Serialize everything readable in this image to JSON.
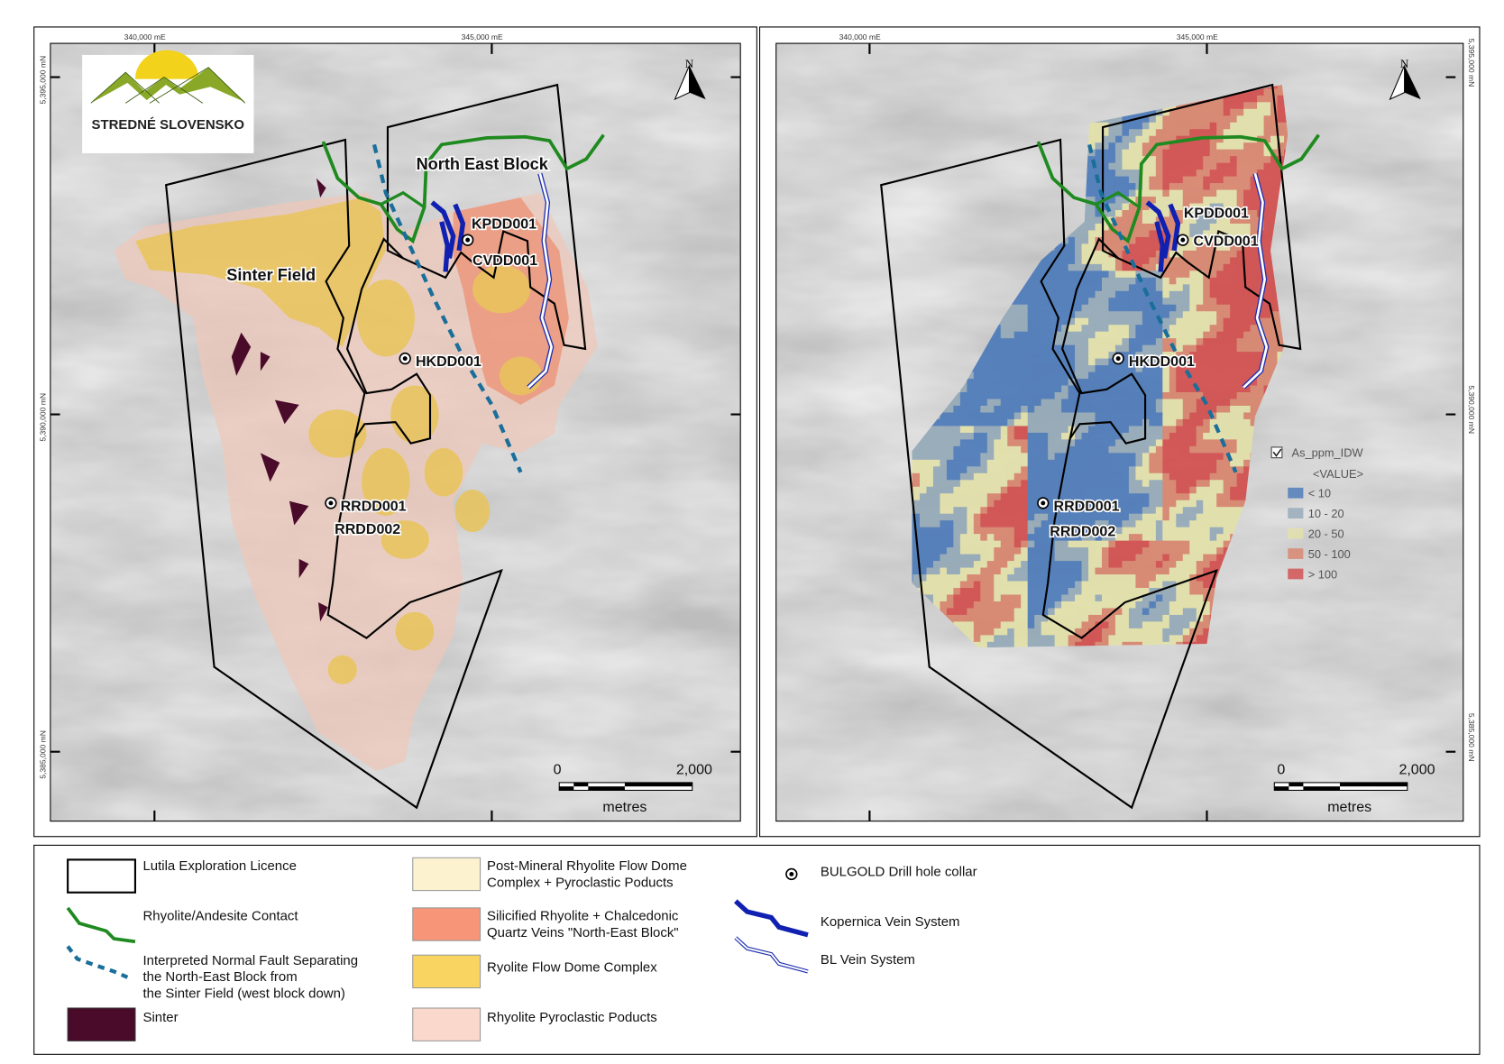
{
  "logo": {
    "text": "STREDNÉ SLOVENSKO"
  },
  "grid": {
    "easting": [
      "340,000 mE",
      "345,000 mE"
    ],
    "northing": [
      "5,395,000 mN",
      "5,390,000 mN",
      "5,385,000 mN"
    ]
  },
  "north_arrow": "N",
  "map_left": {
    "labels": {
      "north_east_block": "North East Block",
      "sinter_field": "Sinter Field"
    },
    "drill_holes": [
      "KPDD001",
      "CVDD001",
      "HKDD001",
      "RRDD001",
      "RRDD002"
    ]
  },
  "map_right": {
    "drill_holes": [
      "KPDD001",
      "CVDD001",
      "HKDD001",
      "RRDD001",
      "RRDD002"
    ],
    "raster_legend": {
      "layer": "As_ppm_IDW",
      "field": "<VALUE>",
      "checked": true,
      "classes": [
        {
          "label": "< 10",
          "color": "#4a78b8"
        },
        {
          "label": "10 - 20",
          "color": "#93a8b6"
        },
        {
          "label": "20 - 50",
          "color": "#e3e1a9"
        },
        {
          "label": "50 - 100",
          "color": "#d8836b"
        },
        {
          "label": "> 100",
          "color": "#d24b4b"
        }
      ]
    }
  },
  "scale_bar": {
    "start": "0",
    "end": "2,000",
    "unit": "metres"
  },
  "legend": {
    "col1": [
      {
        "label": "Lutila Exploration Licence",
        "symbol": "polygon-outline"
      },
      {
        "label": "Rhyolite/Andesite Contact",
        "symbol": "green-line",
        "color": "#1f8a1f"
      },
      {
        "lines": [
          "Interpreted Normal Fault Separating",
          "the North-East Block from",
          "the Sinter Field (west block down)"
        ],
        "symbol": "dashed-line",
        "color": "#1a6e9a"
      },
      {
        "label": "Sinter",
        "symbol": "fill",
        "color": "#4a0a2a"
      }
    ],
    "col2": [
      {
        "lines": [
          "Post-Mineral Rhyolite Flow Dome",
          "Complex + Pyroclastic Poducts"
        ],
        "color": "#fdf2d0"
      },
      {
        "lines": [
          "Silicified Rhyolite + Chalcedonic",
          "Quartz Veins \"North-East Block\""
        ],
        "color": "#f79578"
      },
      {
        "lines": [
          "Ryolite Flow Dome Complex"
        ],
        "color": "#f9d460"
      },
      {
        "lines": [
          "Rhyolite Pyroclastic Poducts"
        ],
        "color": "#fbd8cc"
      }
    ],
    "col3": [
      {
        "label": "BULGOLD Drill hole collar",
        "symbol": "collar"
      },
      {
        "label": "Kopernica Vein System",
        "symbol": "thick-blue-line",
        "color": "#1020b0"
      },
      {
        "label": "BL Vein System",
        "symbol": "double-blue-line",
        "color": "#2030b0"
      }
    ]
  }
}
